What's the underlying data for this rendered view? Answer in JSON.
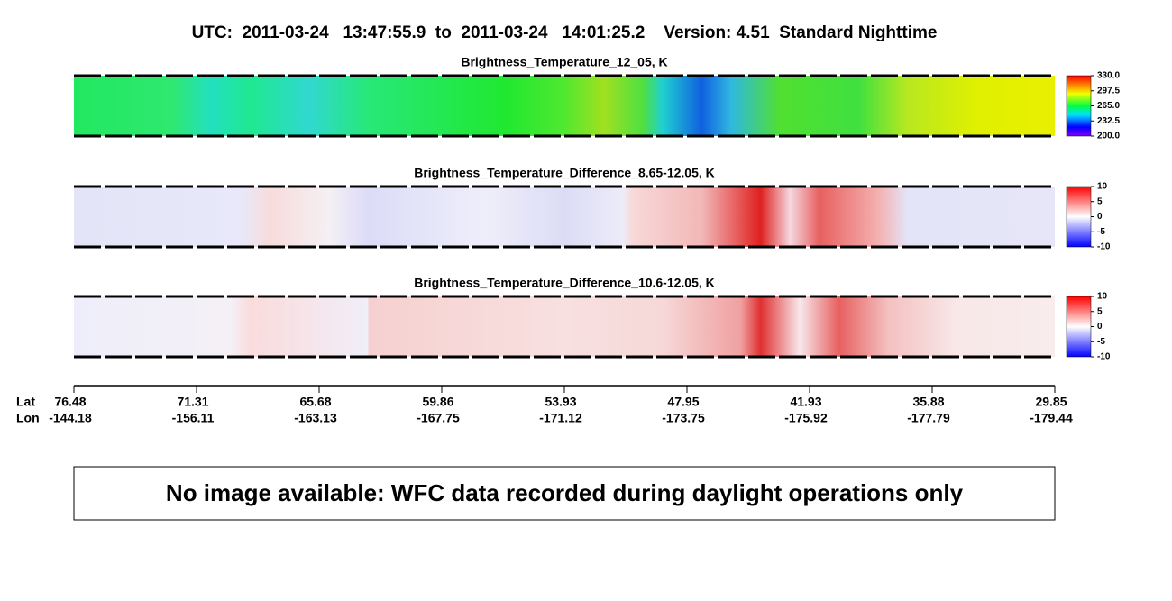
{
  "header": {
    "title": "UTC:  2011-03-24   13:47:55.9  to  2011-03-24   14:01:25.2    Version: 4.51  Standard Nighttime"
  },
  "panels": [
    {
      "title": "Brightness_Temperature_12_05, K",
      "colorbar_ticks": [
        "330.0",
        "297.5",
        "265.0",
        "232.5",
        "200.0"
      ]
    },
    {
      "title": "Brightness_Temperature_Difference_8.65-12.05, K",
      "colorbar_ticks": [
        "10",
        "5",
        "0",
        "-5",
        "-10"
      ]
    },
    {
      "title": "Brightness_Temperature_Difference_10.6-12.05, K",
      "colorbar_ticks": [
        "10",
        "5",
        "0",
        "-5",
        "-10"
      ]
    }
  ],
  "axis": {
    "row_labels": [
      "Lat",
      "Lon"
    ],
    "ticks": [
      {
        "lat": "76.48",
        "lon": "-144.18"
      },
      {
        "lat": "71.31",
        "lon": "-156.11"
      },
      {
        "lat": "65.68",
        "lon": "-163.13"
      },
      {
        "lat": "59.86",
        "lon": "-167.75"
      },
      {
        "lat": "53.93",
        "lon": "-171.12"
      },
      {
        "lat": "47.95",
        "lon": "-173.75"
      },
      {
        "lat": "41.93",
        "lon": "-175.92"
      },
      {
        "lat": "35.88",
        "lon": "-177.79"
      },
      {
        "lat": "29.85",
        "lon": "-179.44"
      }
    ]
  },
  "notice": "No image available: WFC data recorded during daylight operations only"
}
